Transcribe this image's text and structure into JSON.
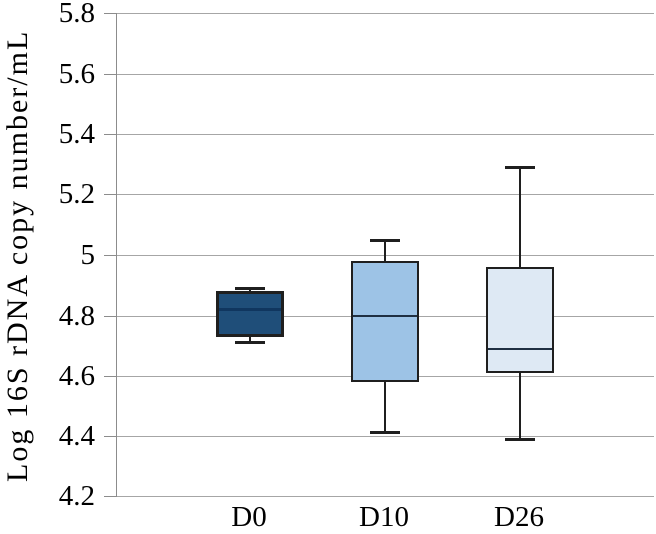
{
  "chart_data": {
    "type": "boxplot",
    "title": "",
    "xlabel": "",
    "ylabel": "Log 16S rDNA copy number/mL",
    "ylim": [
      4.2,
      5.8
    ],
    "yticks": [
      5.8,
      5.6,
      5.4,
      5.2,
      5.0,
      4.8,
      4.6,
      4.4,
      4.2
    ],
    "ytick_labels": [
      "5.8",
      "5.6",
      "5.4",
      "5.2",
      "5",
      "4.8",
      "4.6",
      "4.4",
      "4.2"
    ],
    "grid": "horizontal gridlines on",
    "legend": "none",
    "categories": [
      "D0",
      "D10",
      "D26"
    ],
    "series": [
      {
        "label": "D0",
        "whisker_low": 4.71,
        "q1": 4.73,
        "median": 4.82,
        "q3": 4.88,
        "whisker_high": 4.89,
        "fill": "#1F4E79",
        "median_color": "#10365F"
      },
      {
        "label": "D10",
        "whisker_low": 4.41,
        "q1": 4.58,
        "median": 4.8,
        "q3": 4.98,
        "whisker_high": 5.05,
        "fill": "#9DC3E6",
        "median_color": "#1F2F42"
      },
      {
        "label": "D26",
        "whisker_low": 4.39,
        "q1": 4.61,
        "median": 4.69,
        "q3": 4.96,
        "whisker_high": 5.29,
        "fill": "#DEE9F4",
        "median_color": "#1F2F42"
      }
    ],
    "colors": {
      "background": "#FFFFFF",
      "gridline": "#A6A6A6",
      "axis": "#8C8C8C",
      "stroke": "#1F1F1F",
      "text": "#000000"
    }
  }
}
